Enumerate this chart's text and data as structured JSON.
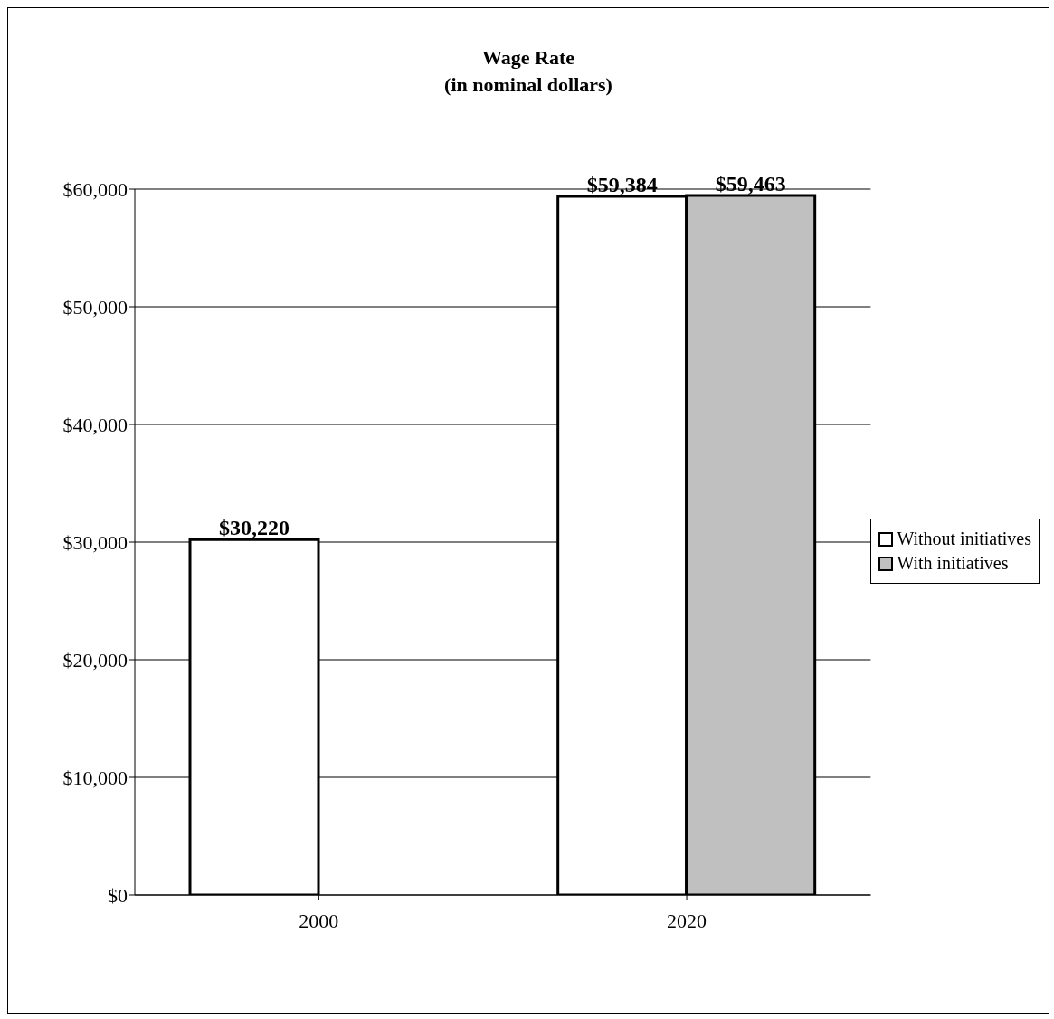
{
  "chart_data": {
    "type": "bar",
    "title": "Wage Rate",
    "subtitle": "(in nominal dollars)",
    "categories": [
      "2000",
      "2020"
    ],
    "series": [
      {
        "name": "Without initiatives",
        "color": "#ffffff",
        "values": [
          30220,
          59384
        ],
        "value_labels": [
          "$30,220",
          "$59,384"
        ]
      },
      {
        "name": "With initiatives",
        "color": "#c0c0c0",
        "values": [
          null,
          59463
        ],
        "value_labels": [
          null,
          "$59,463"
        ]
      }
    ],
    "ylim": [
      0,
      60000
    ],
    "yticks": [
      {
        "value": 0,
        "label": "$0"
      },
      {
        "value": 10000,
        "label": "$10,000"
      },
      {
        "value": 20000,
        "label": "$20,000"
      },
      {
        "value": 30000,
        "label": "$30,000"
      },
      {
        "value": 40000,
        "label": "$40,000"
      },
      {
        "value": 50000,
        "label": "$50,000"
      },
      {
        "value": 60000,
        "label": "$60,000"
      }
    ],
    "grid": "y",
    "legend": "right"
  }
}
